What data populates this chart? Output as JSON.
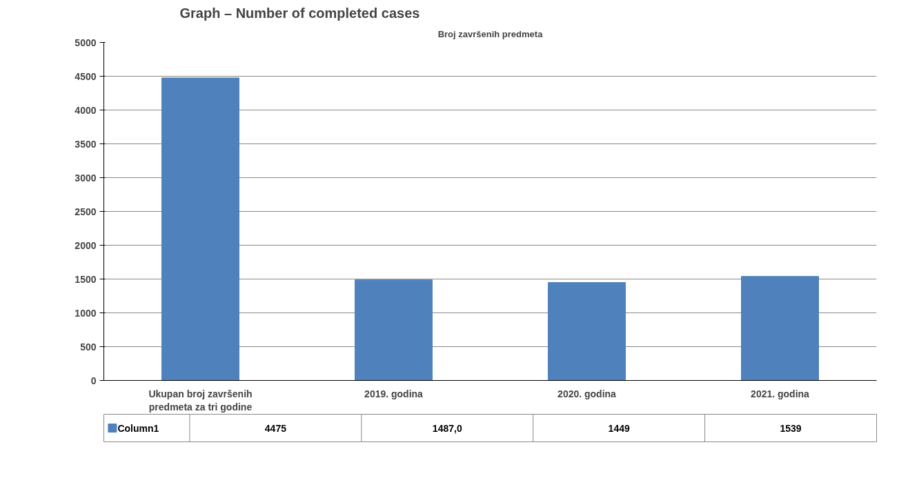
{
  "chart_data": {
    "type": "bar",
    "title": "Broj završenih predmeta",
    "annotations": [
      "Graph – Number of completed cases"
    ],
    "categories": [
      "Ukupan broj završenih\npredmeta za tri godine",
      "2019. godina",
      "2020. godina",
      "2021. godina"
    ],
    "series": [
      {
        "name": "Column1",
        "color": "#4f81bd",
        "values": [
          4475,
          1487,
          1449,
          1539
        ],
        "value_labels": [
          "4475",
          "1487,0",
          "1449",
          "1539"
        ]
      }
    ],
    "ylim": [
      0,
      5000
    ],
    "yticks": [
      0,
      500,
      1000,
      1500,
      2000,
      2500,
      3000,
      3500,
      4000,
      4500,
      5000
    ],
    "grid": "y",
    "legend": "bottom"
  }
}
